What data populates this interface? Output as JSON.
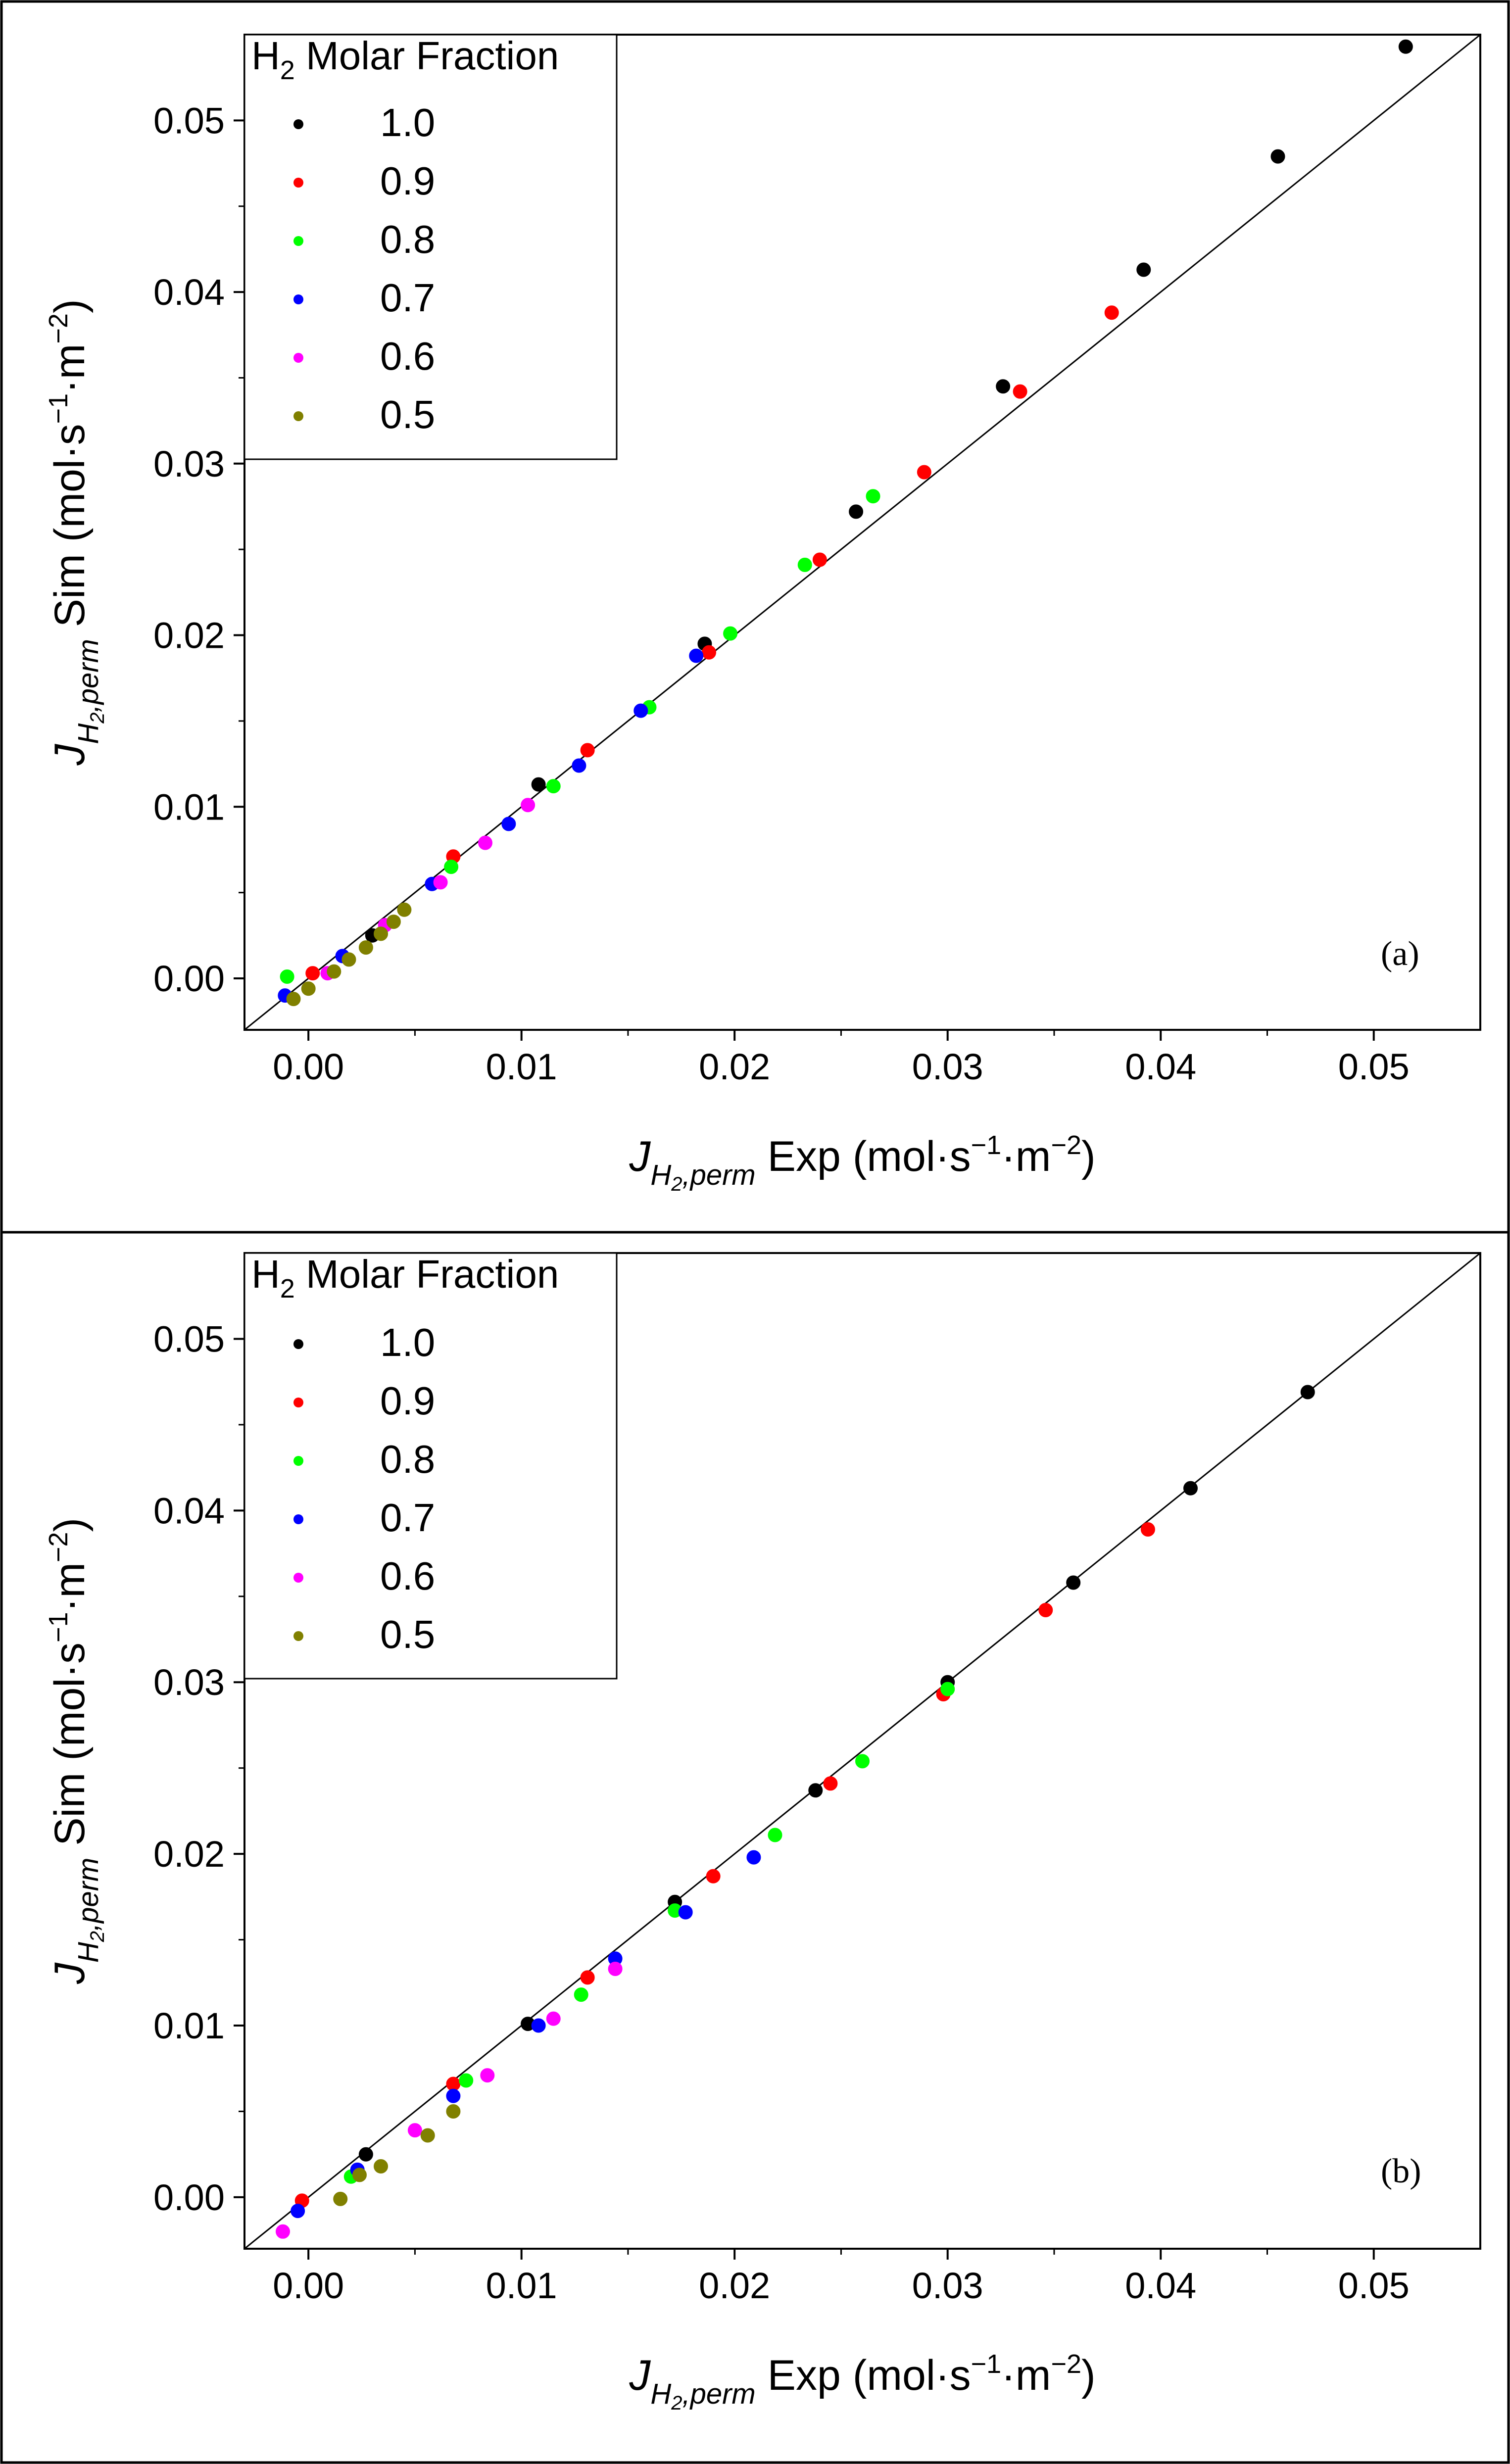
{
  "figure": {
    "panels": [
      {
        "chart_data": {
          "type": "scatter",
          "panel_label": "(a)",
          "xlabel": {
            "prefix": "J",
            "sub1": "H",
            "sub2": "2",
            "sub3": ",perm",
            "rest": " Exp (mol·s",
            "sup1": "−1",
            "mid": "·m",
            "sup2": "−2",
            "end": ")"
          },
          "ylabel": {
            "prefix": "J",
            "sub1": "H",
            "sub2": "2",
            "sub3": ",perm",
            "rest": " Sim (mol·s",
            "sup1": "−1",
            "mid": "·m",
            "sup2": "−2",
            "end": ")"
          },
          "xlim": [
            -0.003,
            0.055
          ],
          "ylim": [
            -0.003,
            0.055
          ],
          "xticks": [
            0.0,
            0.01,
            0.02,
            0.03,
            0.04,
            0.05
          ],
          "xtick_labels": [
            "0.00",
            "0.01",
            "0.02",
            "0.03",
            "0.04",
            "0.05"
          ],
          "yticks": [
            0.0,
            0.01,
            0.02,
            0.03,
            0.04,
            0.05
          ],
          "ytick_labels": [
            "0.00",
            "0.01",
            "0.02",
            "0.03",
            "0.04",
            "0.05"
          ],
          "diagonal": true,
          "legend": {
            "title_prefix": "H",
            "title_sub": "2",
            "title_rest": " Molar Fraction",
            "placement": "top-left"
          },
          "series": [
            {
              "name": "1.0",
              "color": "#000000",
              "points": [
                [
                  0.003,
                  0.0025
                ],
                [
                  0.0108,
                  0.0113
                ],
                [
                  0.0186,
                  0.0195
                ],
                [
                  0.0257,
                  0.0272
                ],
                [
                  0.0326,
                  0.0345
                ],
                [
                  0.0392,
                  0.0413
                ],
                [
                  0.0455,
                  0.0479
                ],
                [
                  0.0515,
                  0.0543
                ]
              ]
            },
            {
              "name": "0.9",
              "color": "#ff0000",
              "points": [
                [
                  0.0002,
                  0.0003
                ],
                [
                  0.0068,
                  0.0071
                ],
                [
                  0.0131,
                  0.0133
                ],
                [
                  0.0188,
                  0.019
                ],
                [
                  0.024,
                  0.0244
                ],
                [
                  0.0289,
                  0.0295
                ],
                [
                  0.0334,
                  0.0342
                ],
                [
                  0.0377,
                  0.0388
                ]
              ]
            },
            {
              "name": "0.8",
              "color": "#00ff00",
              "points": [
                [
                  -0.001,
                  0.0001
                ],
                [
                  0.0067,
                  0.0065
                ],
                [
                  0.0115,
                  0.0112
                ],
                [
                  0.016,
                  0.0158
                ],
                [
                  0.0198,
                  0.0201
                ],
                [
                  0.0233,
                  0.0241
                ],
                [
                  0.0265,
                  0.0281
                ]
              ]
            },
            {
              "name": "0.7",
              "color": "#0000ff",
              "points": [
                [
                  -0.0011,
                  -0.001
                ],
                [
                  0.0016,
                  0.0013
                ],
                [
                  0.0058,
                  0.0055
                ],
                [
                  0.0094,
                  0.009
                ],
                [
                  0.0127,
                  0.0124
                ],
                [
                  0.0156,
                  0.0156
                ],
                [
                  0.0182,
                  0.0188
                ]
              ]
            },
            {
              "name": "0.6",
              "color": "#ff00ff",
              "points": [
                [
                  0.0009,
                  0.0003
                ],
                [
                  0.0036,
                  0.0031
                ],
                [
                  0.0062,
                  0.0056
                ],
                [
                  0.0083,
                  0.0079
                ],
                [
                  0.0103,
                  0.0101
                ]
              ]
            },
            {
              "name": "0.5",
              "color": "#808000",
              "points": [
                [
                  -0.0007,
                  -0.0012
                ],
                [
                  0.0,
                  -0.0006
                ],
                [
                  0.0012,
                  0.0004
                ],
                [
                  0.0019,
                  0.0011
                ],
                [
                  0.0027,
                  0.0018
                ],
                [
                  0.0034,
                  0.0026
                ],
                [
                  0.004,
                  0.0033
                ],
                [
                  0.0045,
                  0.004
                ]
              ]
            }
          ]
        }
      },
      {
        "chart_data": {
          "type": "scatter",
          "panel_label": "(b)",
          "xlabel": {
            "prefix": "J",
            "sub1": "H",
            "sub2": "2",
            "sub3": ",perm",
            "rest": " Exp (mol·s",
            "sup1": "−1",
            "mid": "·m",
            "sup2": "−2",
            "end": ")"
          },
          "ylabel": {
            "prefix": "J",
            "sub1": "H",
            "sub2": "2",
            "sub3": ",perm",
            "rest": " Sim (mol·s",
            "sup1": "−1",
            "mid": "·m",
            "sup2": "−2",
            "end": ")"
          },
          "xlim": [
            -0.003,
            0.055
          ],
          "ylim": [
            -0.003,
            0.055
          ],
          "xticks": [
            0.0,
            0.01,
            0.02,
            0.03,
            0.04,
            0.05
          ],
          "xtick_labels": [
            "0.00",
            "0.01",
            "0.02",
            "0.03",
            "0.04",
            "0.05"
          ],
          "yticks": [
            0.0,
            0.01,
            0.02,
            0.03,
            0.04,
            0.05
          ],
          "ytick_labels": [
            "0.00",
            "0.01",
            "0.02",
            "0.03",
            "0.04",
            "0.05"
          ],
          "diagonal": true,
          "legend": {
            "title_prefix": "H",
            "title_sub": "2",
            "title_rest": " Molar Fraction",
            "placement": "top-left"
          },
          "series": [
            {
              "name": "1.0",
              "color": "#000000",
              "points": [
                [
                  0.0027,
                  0.0025
                ],
                [
                  0.0103,
                  0.0101
                ],
                [
                  0.0172,
                  0.0172
                ],
                [
                  0.0238,
                  0.0237
                ],
                [
                  0.03,
                  0.03
                ],
                [
                  0.0359,
                  0.0358
                ],
                [
                  0.0414,
                  0.0413
                ],
                [
                  0.0469,
                  0.0469
                ]
              ]
            },
            {
              "name": "0.9",
              "color": "#ff0000",
              "points": [
                [
                  -0.0003,
                  -0.0002
                ],
                [
                  0.0068,
                  0.0066
                ],
                [
                  0.0131,
                  0.0128
                ],
                [
                  0.019,
                  0.0187
                ],
                [
                  0.0245,
                  0.0241
                ],
                [
                  0.0298,
                  0.0293
                ],
                [
                  0.0346,
                  0.0342
                ],
                [
                  0.0394,
                  0.0389
                ]
              ]
            },
            {
              "name": "0.8",
              "color": "#00ff00",
              "points": [
                [
                  0.002,
                  0.0012
                ],
                [
                  0.0074,
                  0.0068
                ],
                [
                  0.0128,
                  0.0118
                ],
                [
                  0.0172,
                  0.0167
                ],
                [
                  0.0219,
                  0.0211
                ],
                [
                  0.026,
                  0.0254
                ],
                [
                  0.03,
                  0.0296
                ]
              ]
            },
            {
              "name": "0.7",
              "color": "#0000ff",
              "points": [
                [
                  -0.0005,
                  -0.0008
                ],
                [
                  0.0023,
                  0.0016
                ],
                [
                  0.0068,
                  0.0059
                ],
                [
                  0.0108,
                  0.01
                ],
                [
                  0.0144,
                  0.0139
                ],
                [
                  0.0177,
                  0.0166
                ],
                [
                  0.0209,
                  0.0198
                ]
              ]
            },
            {
              "name": "0.6",
              "color": "#ff00ff",
              "points": [
                [
                  -0.0012,
                  -0.002
                ],
                [
                  0.005,
                  0.0039
                ],
                [
                  0.0084,
                  0.0071
                ],
                [
                  0.0115,
                  0.0104
                ],
                [
                  0.0144,
                  0.0133
                ]
              ]
            },
            {
              "name": "0.5",
              "color": "#808000",
              "points": [
                [
                  0.0015,
                  -0.0001
                ],
                [
                  0.0024,
                  0.0013
                ],
                [
                  0.0034,
                  0.0018
                ],
                [
                  0.0056,
                  0.0036
                ],
                [
                  0.0068,
                  0.005
                ]
              ]
            }
          ]
        }
      }
    ]
  }
}
